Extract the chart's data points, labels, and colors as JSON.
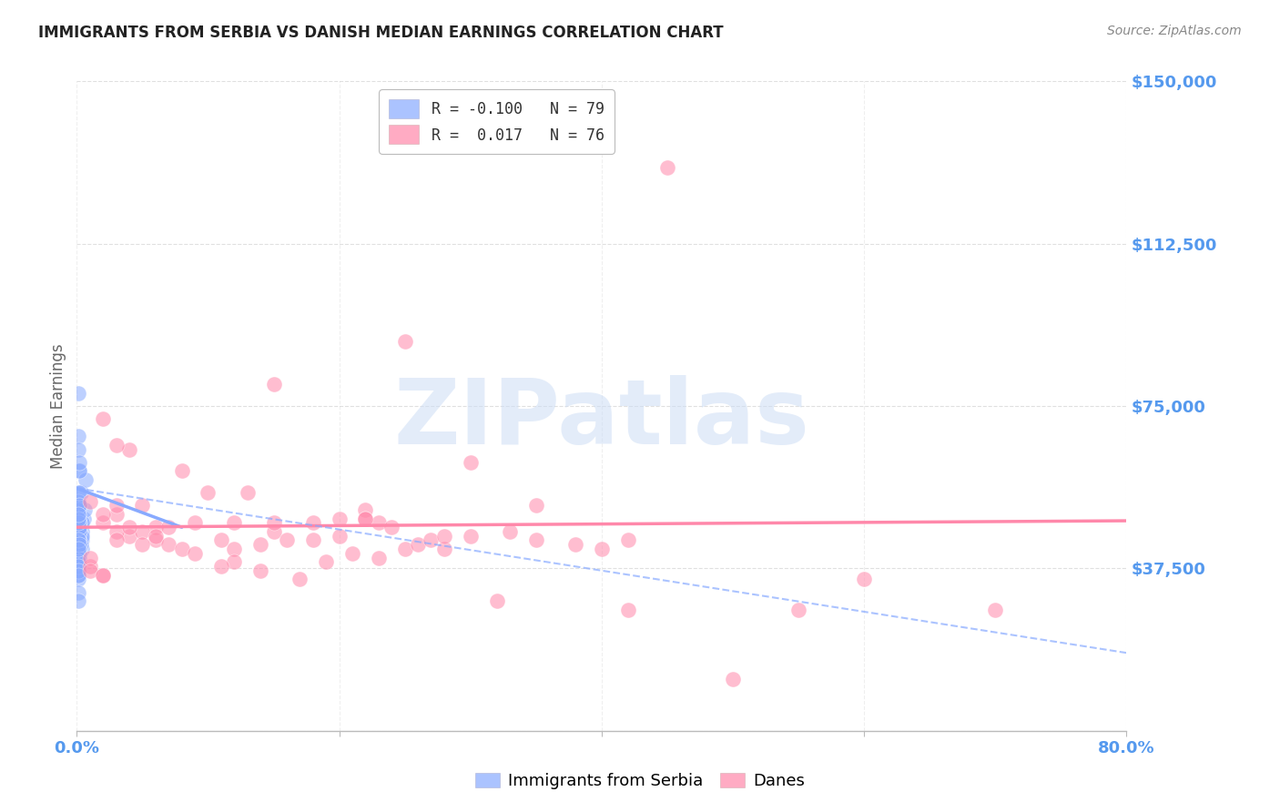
{
  "title": "IMMIGRANTS FROM SERBIA VS DANISH MEDIAN EARNINGS CORRELATION CHART",
  "source": "Source: ZipAtlas.com",
  "legend_label1": "Immigrants from Serbia",
  "legend_label2": "Danes",
  "blue_color": "#88AAFF",
  "pink_color": "#FF88AA",
  "blue_scatter": [
    [
      0.001,
      47500
    ],
    [
      0.001,
      50000
    ],
    [
      0.002,
      45000
    ],
    [
      0.002,
      52000
    ],
    [
      0.001,
      47000
    ],
    [
      0.002,
      60000
    ],
    [
      0.003,
      55000
    ],
    [
      0.003,
      48000
    ],
    [
      0.004,
      46000
    ],
    [
      0.004,
      44000
    ],
    [
      0.005,
      49000
    ],
    [
      0.006,
      51000
    ],
    [
      0.007,
      58000
    ],
    [
      0.004,
      42000
    ],
    [
      0.003,
      44000
    ],
    [
      0.002,
      46000
    ],
    [
      0.004,
      48000
    ],
    [
      0.002,
      52000
    ],
    [
      0.001,
      68000
    ],
    [
      0.002,
      60000
    ],
    [
      0.001,
      55000
    ],
    [
      0.001,
      48000
    ],
    [
      0.001,
      46000
    ],
    [
      0.001,
      44000
    ],
    [
      0.001,
      42000
    ],
    [
      0.001,
      42000
    ],
    [
      0.002,
      43000
    ],
    [
      0.002,
      44000
    ],
    [
      0.002,
      43000
    ],
    [
      0.003,
      45000
    ],
    [
      0.001,
      47000
    ],
    [
      0.001,
      50000
    ],
    [
      0.001,
      49000
    ],
    [
      0.002,
      48000
    ],
    [
      0.001,
      38000
    ],
    [
      0.001,
      36000
    ],
    [
      0.001,
      37000
    ],
    [
      0.001,
      78000
    ],
    [
      0.001,
      65000
    ],
    [
      0.002,
      62000
    ],
    [
      0.001,
      35000
    ],
    [
      0.001,
      39000
    ],
    [
      0.002,
      41000
    ],
    [
      0.002,
      40000
    ],
    [
      0.003,
      43000
    ],
    [
      0.003,
      44000
    ],
    [
      0.004,
      45000
    ],
    [
      0.001,
      32000
    ],
    [
      0.001,
      30000
    ],
    [
      0.002,
      46000
    ],
    [
      0.001,
      44000
    ],
    [
      0.001,
      46000
    ],
    [
      0.002,
      47000
    ],
    [
      0.002,
      48000
    ],
    [
      0.001,
      51000
    ],
    [
      0.001,
      53000
    ],
    [
      0.002,
      55000
    ],
    [
      0.002,
      52000
    ],
    [
      0.001,
      44000
    ],
    [
      0.001,
      44000
    ],
    [
      0.001,
      43000
    ],
    [
      0.002,
      42000
    ],
    [
      0.002,
      41000
    ],
    [
      0.001,
      40000
    ],
    [
      0.001,
      39000
    ],
    [
      0.001,
      38000
    ],
    [
      0.001,
      37000
    ],
    [
      0.001,
      36000
    ],
    [
      0.002,
      44000
    ],
    [
      0.001,
      44000
    ],
    [
      0.001,
      45000
    ],
    [
      0.002,
      46000
    ],
    [
      0.002,
      47000
    ],
    [
      0.001,
      48000
    ],
    [
      0.001,
      49000
    ],
    [
      0.001,
      50000
    ],
    [
      0.001,
      44000
    ],
    [
      0.002,
      43000
    ],
    [
      0.001,
      42000
    ]
  ],
  "pink_scatter": [
    [
      0.02,
      48000
    ],
    [
      0.03,
      50000
    ],
    [
      0.04,
      45000
    ],
    [
      0.05,
      52000
    ],
    [
      0.06,
      47000
    ],
    [
      0.08,
      60000
    ],
    [
      0.1,
      55000
    ],
    [
      0.12,
      48000
    ],
    [
      0.15,
      46000
    ],
    [
      0.18,
      44000
    ],
    [
      0.2,
      49000
    ],
    [
      0.22,
      51000
    ],
    [
      0.25,
      90000
    ],
    [
      0.28,
      42000
    ],
    [
      0.06,
      44000
    ],
    [
      0.05,
      46000
    ],
    [
      0.09,
      48000
    ],
    [
      0.03,
      52000
    ],
    [
      0.02,
      72000
    ],
    [
      0.04,
      65000
    ],
    [
      0.25,
      42000
    ],
    [
      0.3,
      45000
    ],
    [
      0.35,
      44000
    ],
    [
      0.38,
      43000
    ],
    [
      0.4,
      42000
    ],
    [
      0.12,
      42000
    ],
    [
      0.14,
      43000
    ],
    [
      0.16,
      44000
    ],
    [
      0.05,
      43000
    ],
    [
      0.06,
      45000
    ],
    [
      0.07,
      47000
    ],
    [
      0.02,
      50000
    ],
    [
      0.22,
      49000
    ],
    [
      0.23,
      48000
    ],
    [
      0.01,
      38000
    ],
    [
      0.02,
      36000
    ],
    [
      0.14,
      37000
    ],
    [
      0.45,
      130000
    ],
    [
      0.15,
      80000
    ],
    [
      0.3,
      62000
    ],
    [
      0.17,
      35000
    ],
    [
      0.19,
      39000
    ],
    [
      0.21,
      41000
    ],
    [
      0.23,
      40000
    ],
    [
      0.26,
      43000
    ],
    [
      0.27,
      44000
    ],
    [
      0.28,
      45000
    ],
    [
      0.5,
      12000
    ],
    [
      0.42,
      28000
    ],
    [
      0.03,
      46000
    ],
    [
      0.55,
      28000
    ],
    [
      0.32,
      30000
    ],
    [
      0.33,
      46000
    ],
    [
      0.24,
      47000
    ],
    [
      0.15,
      48000
    ],
    [
      0.01,
      53000
    ],
    [
      0.13,
      55000
    ],
    [
      0.35,
      52000
    ],
    [
      0.42,
      44000
    ],
    [
      0.11,
      44000
    ],
    [
      0.07,
      43000
    ],
    [
      0.08,
      42000
    ],
    [
      0.09,
      41000
    ],
    [
      0.01,
      40000
    ],
    [
      0.12,
      39000
    ],
    [
      0.11,
      38000
    ],
    [
      0.01,
      37000
    ],
    [
      0.02,
      36000
    ],
    [
      0.03,
      44000
    ],
    [
      0.7,
      28000
    ],
    [
      0.2,
      45000
    ],
    [
      0.03,
      66000
    ],
    [
      0.04,
      47000
    ],
    [
      0.18,
      48000
    ],
    [
      0.22,
      49000
    ],
    [
      0.6,
      35000
    ]
  ],
  "xmin": 0.0,
  "xmax": 0.8,
  "ymin": 0,
  "ymax": 150000,
  "yticks": [
    0,
    37500,
    75000,
    112500,
    150000
  ],
  "ytick_labels": [
    "",
    "$37,500",
    "$75,000",
    "$112,500",
    "$150,000"
  ],
  "xtick_positions": [
    0.0,
    0.2,
    0.4,
    0.6,
    0.8
  ],
  "xtick_labels": [
    "0.0%",
    "",
    "",
    "",
    "80.0%"
  ],
  "blue_line_x": [
    0.0,
    0.08
  ],
  "blue_line_y": [
    56000,
    47000
  ],
  "pink_line_x": [
    0.0,
    0.8
  ],
  "pink_line_y": [
    47000,
    48500
  ],
  "dashed_line_x": [
    0.0,
    0.8
  ],
  "dashed_line_y": [
    56000,
    18000
  ],
  "watermark_text": "ZIPatlas",
  "ylabel": "Median Earnings",
  "title_color": "#222222",
  "source_color": "#888888",
  "ytick_color": "#5599EE",
  "xtick_color": "#5599EE",
  "grid_color": "#cccccc",
  "grid_alpha": 0.6,
  "legend_r1_text": "R = -0.100   N = 79",
  "legend_r2_text": "R =  0.017   N = 76"
}
